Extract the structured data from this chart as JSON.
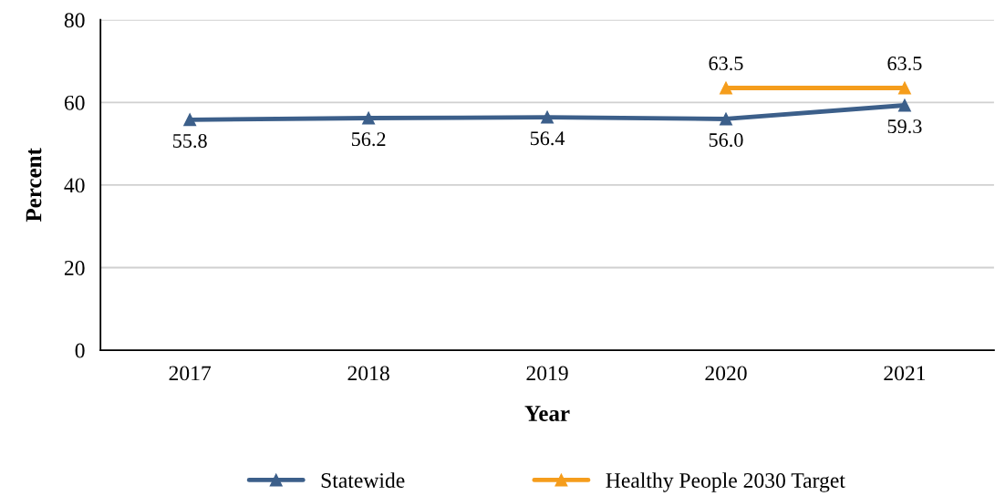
{
  "chart_data": {
    "type": "line",
    "xlabel": "Year",
    "ylabel": "Percent",
    "categories": [
      "2017",
      "2018",
      "2019",
      "2020",
      "2021"
    ],
    "series": [
      {
        "name": "Statewide",
        "color": "#3c5f8a",
        "values": [
          55.8,
          56.2,
          56.4,
          56.0,
          59.3
        ],
        "value_labels": [
          "55.8",
          "56.2",
          "56.4",
          "56.0",
          "59.3"
        ]
      },
      {
        "name": "Healthy People 2030 Target",
        "color": "#f59d1c",
        "values": [
          null,
          null,
          null,
          63.5,
          63.5
        ],
        "value_labels": [
          null,
          null,
          null,
          "63.5",
          "63.5"
        ]
      }
    ],
    "ylim": [
      0,
      80
    ],
    "yticks": [
      0,
      20,
      40,
      60,
      80
    ],
    "grid": "y",
    "legend": "bottom",
    "marker": "triangle",
    "line_style": "solid"
  }
}
